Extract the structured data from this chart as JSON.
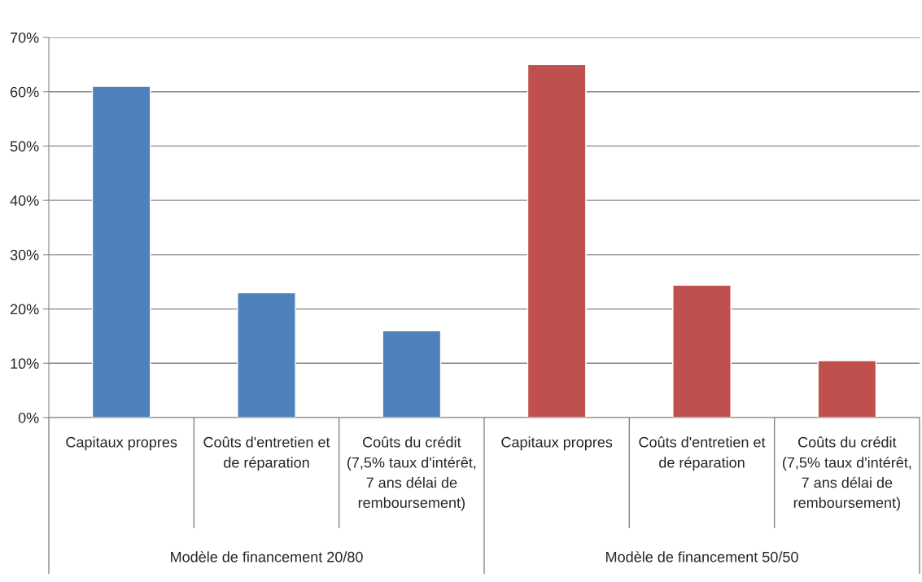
{
  "chart_data": {
    "type": "bar",
    "categories": [
      "Capitaux propres",
      "Coûts d'entretien et de réparation",
      "Coûts du crédit (7,5% taux d'intérêt, 7 ans délai de remboursement)",
      "Capitaux propres",
      "Coûts d'entretien et de réparation",
      "Coûts du crédit (7,5% taux d'intérêt, 7 ans délai de remboursement)"
    ],
    "values": [
      61,
      23,
      16,
      65,
      24.4,
      10.5
    ],
    "colors": [
      "#4f81bd",
      "#4f81bd",
      "#4f81bd",
      "#c0504d",
      "#c0504d",
      "#c0504d"
    ],
    "ylim": [
      0,
      70
    ],
    "yticks": [
      {
        "value": 0,
        "label": "0%"
      },
      {
        "value": 10,
        "label": "10%"
      },
      {
        "value": 20,
        "label": "20%"
      },
      {
        "value": 30,
        "label": "30%"
      },
      {
        "value": 40,
        "label": "40%"
      },
      {
        "value": 50,
        "label": "50%"
      },
      {
        "value": 60,
        "label": "60%"
      },
      {
        "value": 70,
        "label": "70%"
      }
    ],
    "grid": "y",
    "legend": false,
    "annotations": [
      "Modèle de financement 20/80",
      "Modèle de financement 50/50"
    ]
  }
}
